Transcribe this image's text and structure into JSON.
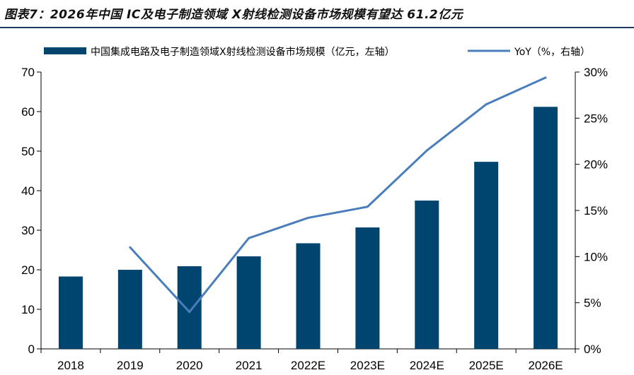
{
  "figure_title": "图表7：2026年中国 IC及电子制造领域 X射线检测设备市场规模有望达 61.2亿元",
  "colors": {
    "bar": "#004470",
    "line": "#4a7ebb",
    "axis": "#000000",
    "rule": "#1f3864"
  },
  "chart_data": {
    "type": "bar",
    "title": "",
    "categories": [
      "2018",
      "2019",
      "2020",
      "2021",
      "2022E",
      "2023E",
      "2024E",
      "2025E",
      "2026E"
    ],
    "series": [
      {
        "name": "中国集成电路及电子制造领域X射线检测设备市场规模（亿元，左轴）",
        "kind": "bar",
        "axis": "left",
        "values": [
          18.3,
          20.0,
          20.9,
          23.4,
          26.7,
          30.7,
          37.5,
          47.3,
          61.2
        ]
      },
      {
        "name": "YoY（%，右轴）",
        "kind": "line",
        "axis": "right",
        "values": [
          null,
          11.0,
          4.0,
          12.0,
          14.2,
          15.4,
          21.5,
          26.5,
          29.4
        ]
      }
    ],
    "y_left": {
      "min": 0,
      "max": 70,
      "ticks": [
        0,
        10,
        20,
        30,
        40,
        50,
        60,
        70
      ]
    },
    "y_right": {
      "min": 0,
      "max": 30,
      "ticks": [
        "0%",
        "5%",
        "10%",
        "15%",
        "20%",
        "25%",
        "30%"
      ]
    },
    "legend_position": "top",
    "grid": false
  }
}
